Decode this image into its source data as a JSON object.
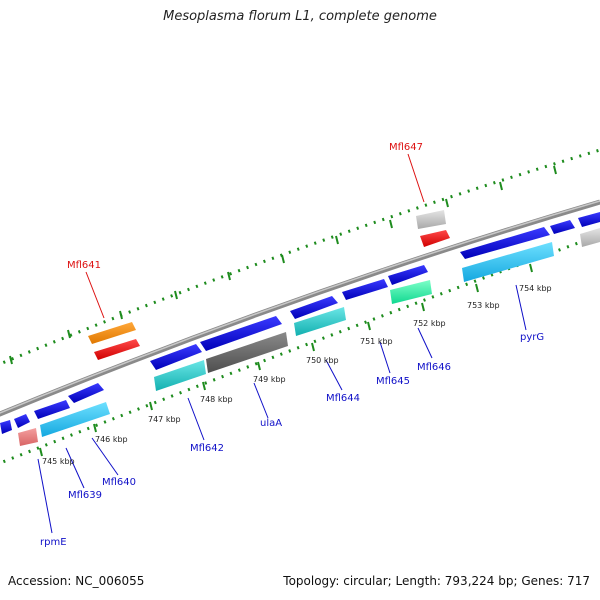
{
  "title": "Mesoplasma florum L1, complete genome",
  "footer": {
    "accession": "Accession: NC_006055",
    "summary": "Topology: circular; Length: 793,224 bp; Genes: 717"
  },
  "colors": {
    "backbone": "#8c8c8c",
    "tick_green": "#1e8c1e",
    "label_blue": "#1010c8",
    "label_red": "#dd1111"
  },
  "kbp_labels": [
    "745 kbp",
    "746 kbp",
    "747 kbp",
    "748 kbp",
    "749 kbp",
    "750 kbp",
    "751 kbp",
    "752 kbp",
    "753 kbp",
    "754 kbp"
  ],
  "gene_labels": {
    "rpmE": "rpmE",
    "Mfl639": "Mfl639",
    "Mfl640": "Mfl640",
    "Mfl642": "Mfl642",
    "ulaA": "ulaA",
    "Mfl644": "Mfl644",
    "Mfl645": "Mfl645",
    "Mfl646": "Mfl646",
    "pyrG": "pyrG",
    "Mfl641": "Mfl641",
    "Mfl647": "Mfl647"
  }
}
